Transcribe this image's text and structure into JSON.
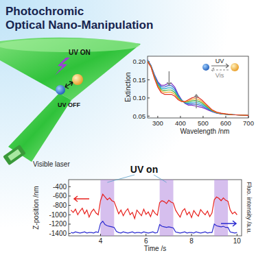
{
  "title": [
    "Photochromic",
    "Optical Nano-Manipulation"
  ],
  "illustration": {
    "uv_on": "UV ON",
    "uv_off": "UV OFF",
    "laser": "Visible laser"
  },
  "chart_data": [
    {
      "type": "line",
      "x_label": "Wavelength /nm",
      "y_label": "Extinction",
      "annotations": {
        "forward": "UV",
        "backward": "Vis"
      },
      "x": [
        255,
        270,
        285,
        300,
        315,
        330,
        345,
        360,
        375,
        390,
        405,
        420,
        435,
        450,
        465,
        480,
        495,
        510,
        525,
        540,
        560,
        580,
        600,
        630,
        660,
        700
      ],
      "xlim": [
        255,
        700
      ],
      "xticks": [
        300,
        400,
        500,
        600,
        700
      ],
      "ylim": [
        0.045,
        0.215
      ],
      "yticks": [
        {
          "value": 0.05,
          "label": "0.05"
        },
        {
          "value": 0.1,
          "label": "0.10"
        },
        {
          "value": 0.15,
          "label": "0.15"
        },
        {
          "value": 0.2,
          "label": "0.20"
        }
      ],
      "series": [
        {
          "color": "#7b2fbf",
          "values": [
            0.205,
            0.19,
            0.165,
            0.145,
            0.135,
            0.135,
            0.14,
            0.14,
            0.13,
            0.11,
            0.095,
            0.085,
            0.08,
            0.08,
            0.078,
            0.076,
            0.074,
            0.07,
            0.066,
            0.062,
            0.058,
            0.056,
            0.055,
            0.054,
            0.053,
            0.052
          ]
        },
        {
          "color": "#2f5fd0",
          "values": [
            0.204,
            0.189,
            0.163,
            0.142,
            0.131,
            0.13,
            0.134,
            0.134,
            0.125,
            0.107,
            0.094,
            0.086,
            0.083,
            0.084,
            0.083,
            0.081,
            0.078,
            0.073,
            0.068,
            0.063,
            0.059,
            0.056,
            0.055,
            0.054,
            0.053,
            0.052
          ]
        },
        {
          "color": "#20a8c8",
          "values": [
            0.203,
            0.188,
            0.161,
            0.139,
            0.127,
            0.125,
            0.128,
            0.128,
            0.12,
            0.104,
            0.093,
            0.087,
            0.086,
            0.088,
            0.088,
            0.086,
            0.082,
            0.076,
            0.07,
            0.064,
            0.059,
            0.057,
            0.055,
            0.054,
            0.053,
            0.052
          ]
        },
        {
          "color": "#40b040",
          "values": [
            0.202,
            0.187,
            0.159,
            0.136,
            0.123,
            0.12,
            0.122,
            0.122,
            0.115,
            0.101,
            0.092,
            0.088,
            0.089,
            0.092,
            0.093,
            0.091,
            0.086,
            0.079,
            0.072,
            0.065,
            0.06,
            0.057,
            0.055,
            0.054,
            0.053,
            0.052
          ]
        },
        {
          "color": "#f0a020",
          "values": [
            0.201,
            0.186,
            0.157,
            0.133,
            0.119,
            0.115,
            0.116,
            0.116,
            0.11,
            0.098,
            0.091,
            0.089,
            0.092,
            0.096,
            0.098,
            0.096,
            0.09,
            0.082,
            0.074,
            0.066,
            0.06,
            0.057,
            0.056,
            0.054,
            0.053,
            0.052
          ]
        },
        {
          "color": "#e03020",
          "values": [
            0.2,
            0.185,
            0.155,
            0.13,
            0.115,
            0.11,
            0.11,
            0.11,
            0.105,
            0.095,
            0.09,
            0.09,
            0.095,
            0.1,
            0.103,
            0.101,
            0.094,
            0.085,
            0.076,
            0.067,
            0.061,
            0.058,
            0.056,
            0.054,
            0.053,
            0.052
          ]
        }
      ]
    },
    {
      "type": "line",
      "annotation": "UV on",
      "x_label": "Time /s",
      "y_label": "Z-position /nm",
      "y2_label": "Fluo. intensity /a.u.",
      "x": [
        2.7,
        2.8,
        2.9,
        3.0,
        3.1,
        3.2,
        3.3,
        3.4,
        3.5,
        3.6,
        3.7,
        3.8,
        3.9,
        4.0,
        4.1,
        4.2,
        4.3,
        4.4,
        4.5,
        4.6,
        4.7,
        4.8,
        4.9,
        5.0,
        5.1,
        5.2,
        5.3,
        5.4,
        5.5,
        5.6,
        5.7,
        5.8,
        5.9,
        6.0,
        6.1,
        6.2,
        6.3,
        6.4,
        6.5,
        6.6,
        6.7,
        6.8,
        6.9,
        7.0,
        7.1,
        7.2,
        7.3,
        7.4,
        7.5,
        7.6,
        7.7,
        7.8,
        7.9,
        8.0,
        8.1,
        8.2,
        8.3,
        8.4,
        8.5,
        8.6,
        8.7,
        8.8,
        8.9,
        9.0,
        9.1,
        9.2,
        9.3,
        9.4,
        9.5,
        9.6,
        9.7,
        9.8,
        9.9,
        10.0
      ],
      "xlim": [
        2.6,
        10.2
      ],
      "xticks": [
        4,
        6,
        8,
        10
      ],
      "ylim": [
        -1450,
        -250
      ],
      "yticks": [
        -400,
        -600,
        -800,
        -1000,
        -1200,
        -1400
      ],
      "y2lim": [
        0,
        1
      ],
      "y2ticks": [],
      "uv_on_intervals": [
        [
          4.0,
          4.6
        ],
        [
          6.6,
          7.2
        ],
        [
          9.0,
          9.6
        ]
      ],
      "series": [
        {
          "color": "#e8201c",
          "axis": "y",
          "values": [
            -900,
            -950,
            -880,
            -1000,
            -920,
            -860,
            -980,
            -900,
            -1050,
            -940,
            -880,
            -960,
            -1000,
            -700,
            -560,
            -620,
            -680,
            -640,
            -700,
            -720,
            -850,
            -980,
            -900,
            -1020,
            -930,
            -870,
            -1000,
            -950,
            -1080,
            -900,
            -960,
            -1020,
            -880,
            -990,
            -940,
            -1040,
            -900,
            -970,
            -1010,
            -740,
            -700,
            -720,
            -760,
            -690,
            -730,
            -750,
            -900,
            -980,
            -1050,
            -920,
            -870,
            -1000,
            -940,
            -1060,
            -910,
            -980,
            -1030,
            -890,
            -950,
            -1000,
            -920,
            -1040,
            -960,
            -680,
            -620,
            -650,
            -700,
            -640,
            -690,
            -710,
            -900,
            -980,
            -940,
            -1000
          ]
        },
        {
          "color": "#2a2ad0",
          "axis": "y2",
          "values": [
            0.06,
            0.05,
            0.07,
            0.06,
            0.05,
            0.06,
            0.07,
            0.05,
            0.06,
            0.06,
            0.05,
            0.07,
            0.06,
            0.22,
            0.26,
            0.2,
            0.18,
            0.17,
            0.16,
            0.15,
            0.08,
            0.06,
            0.05,
            0.07,
            0.06,
            0.05,
            0.06,
            0.07,
            0.05,
            0.06,
            0.06,
            0.05,
            0.07,
            0.06,
            0.05,
            0.06,
            0.07,
            0.05,
            0.06,
            0.2,
            0.17,
            0.16,
            0.15,
            0.16,
            0.15,
            0.14,
            0.07,
            0.06,
            0.05,
            0.06,
            0.07,
            0.05,
            0.06,
            0.06,
            0.05,
            0.07,
            0.06,
            0.05,
            0.06,
            0.07,
            0.05,
            0.06,
            0.06,
            0.21,
            0.18,
            0.17,
            0.16,
            0.17,
            0.15,
            0.15,
            0.07,
            0.06,
            0.05,
            0.06
          ]
        }
      ]
    }
  ]
}
